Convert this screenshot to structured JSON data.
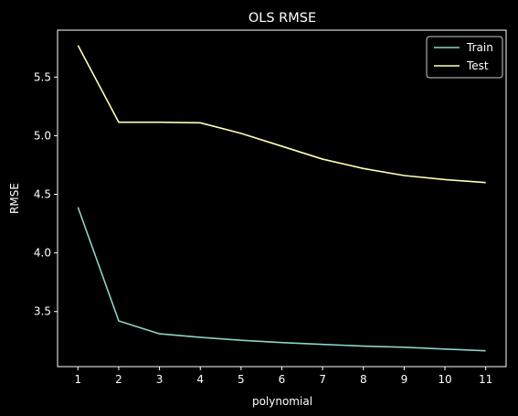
{
  "chart_data": {
    "type": "line",
    "title": "OLS RMSE",
    "xlabel": "polynomial",
    "ylabel": "RMSE",
    "x": [
      1,
      2,
      3,
      4,
      5,
      6,
      7,
      8,
      9,
      10,
      11
    ],
    "xticks": [
      "1",
      "2",
      "3",
      "4",
      "5",
      "6",
      "7",
      "8",
      "9",
      "10",
      "11"
    ],
    "yticks": [
      "3.5",
      "4.0",
      "4.5",
      "5.0",
      "5.5"
    ],
    "ytick_values": [
      3.5,
      4.0,
      4.5,
      5.0,
      5.5
    ],
    "xlim": [
      0.5,
      11.5
    ],
    "ylim": [
      3.03,
      5.9
    ],
    "grid": false,
    "legend_position": "upper right",
    "background": "#000000",
    "foreground": "#ffffff",
    "series": [
      {
        "name": "Train",
        "color": "#8dd3c7",
        "values": [
          4.39,
          3.42,
          3.31,
          3.28,
          3.255,
          3.235,
          3.22,
          3.205,
          3.195,
          3.18,
          3.165
        ]
      },
      {
        "name": "Test",
        "color": "#ffffb3",
        "values": [
          5.77,
          5.115,
          5.115,
          5.11,
          5.02,
          4.91,
          4.8,
          4.72,
          4.66,
          4.625,
          4.6
        ]
      }
    ]
  }
}
